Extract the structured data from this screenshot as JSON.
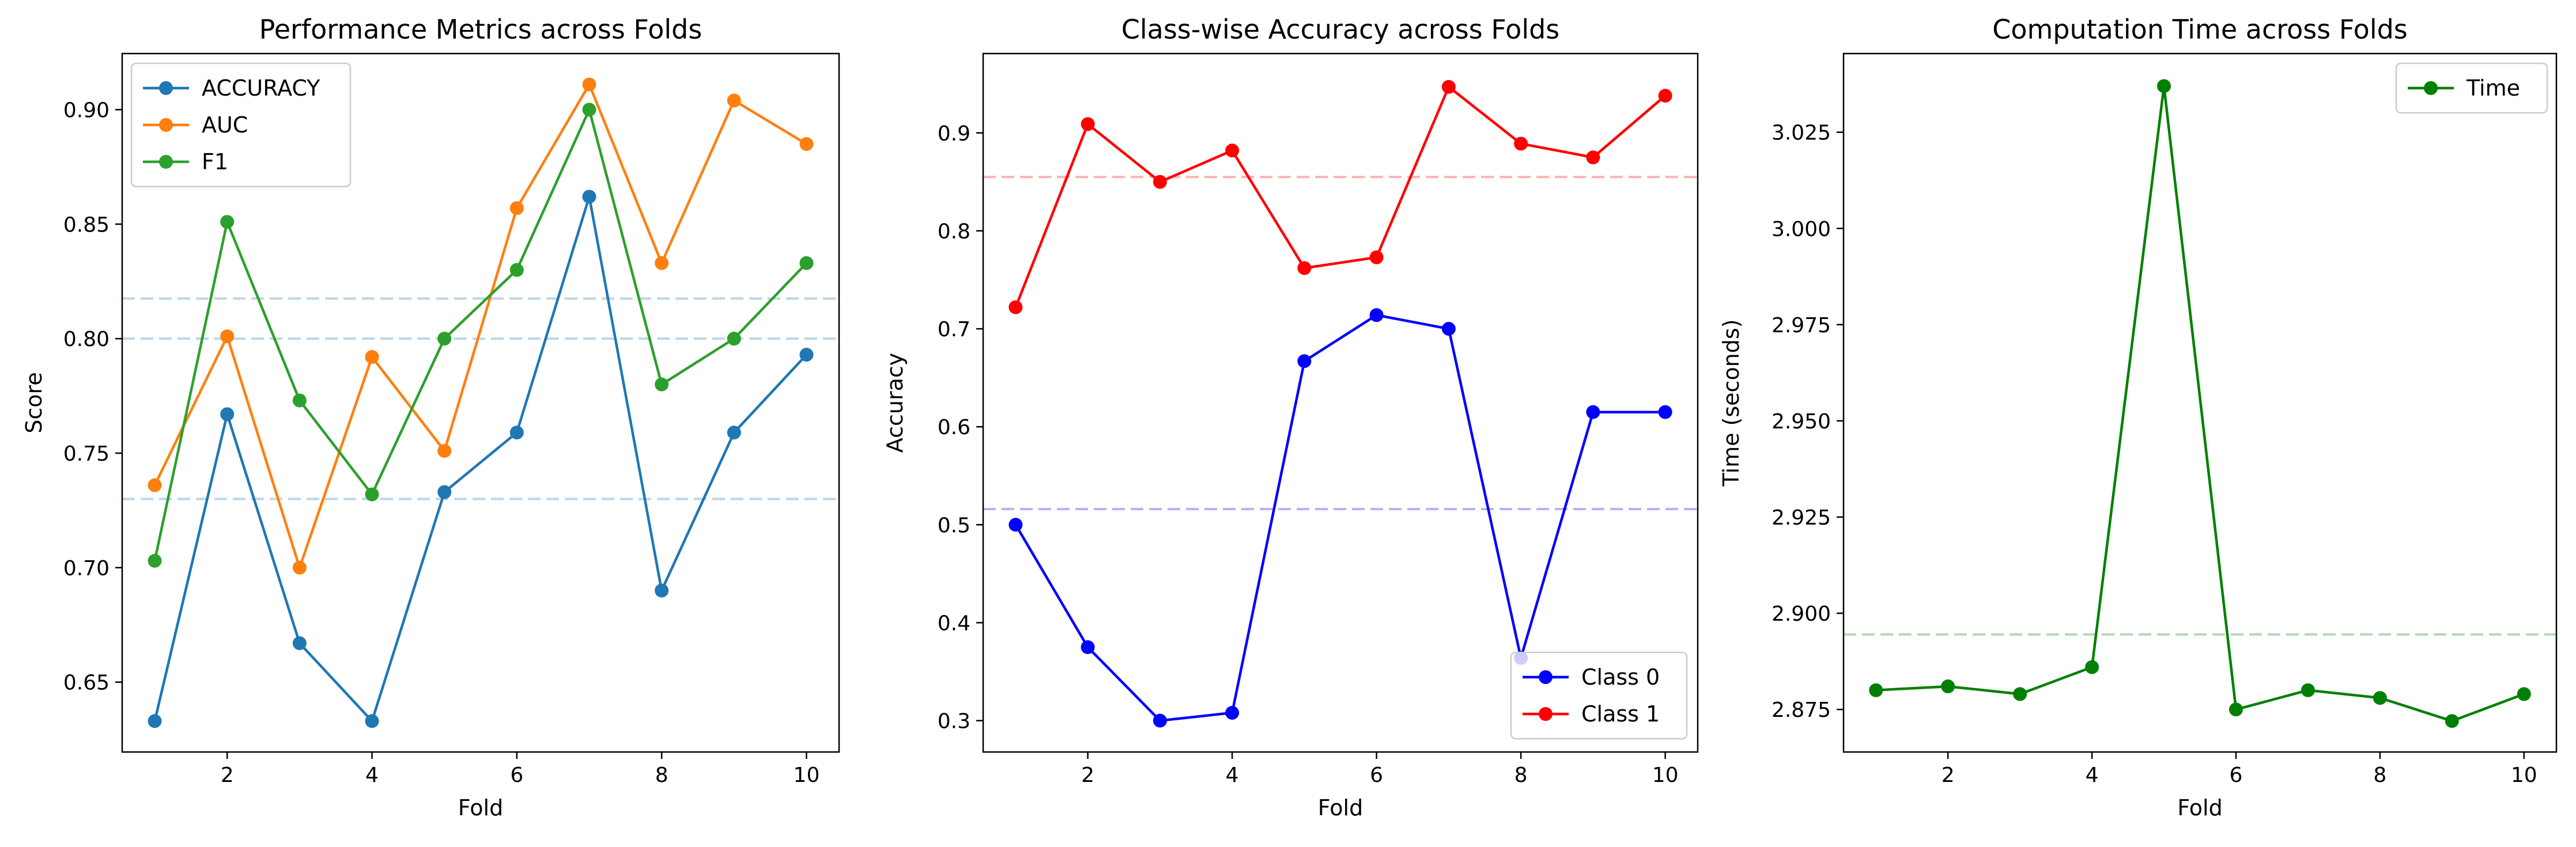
{
  "chart_data": [
    {
      "type": "line",
      "title": "Performance Metrics across Folds",
      "xlabel": "Fold",
      "ylabel": "Score",
      "xlim": [
        0.55,
        10.45
      ],
      "ylim": [
        0.6195,
        0.9245
      ],
      "xticks": [
        2,
        4,
        6,
        8,
        10
      ],
      "xtick_labels": [
        "2",
        "4",
        "6",
        "8",
        "10"
      ],
      "yticks": [
        0.65,
        0.7,
        0.75,
        0.8,
        0.85,
        0.9
      ],
      "ytick_labels": [
        "0.65",
        "0.70",
        "0.75",
        "0.80",
        "0.85",
        "0.90"
      ],
      "grid": false,
      "legend_position": "upper-left",
      "x": [
        1,
        2,
        3,
        4,
        5,
        6,
        7,
        8,
        9,
        10
      ],
      "series": [
        {
          "name": "ACCURACY",
          "color": "#1f77b4",
          "values": [
            0.633,
            0.767,
            0.667,
            0.633,
            0.733,
            0.759,
            0.862,
            0.69,
            0.759,
            0.793
          ]
        },
        {
          "name": "AUC",
          "color": "#ff7f0e",
          "values": [
            0.736,
            0.801,
            0.7,
            0.792,
            0.751,
            0.857,
            0.911,
            0.833,
            0.904,
            0.885
          ]
        },
        {
          "name": "F1",
          "color": "#2ca02c",
          "values": [
            0.703,
            0.851,
            0.773,
            0.732,
            0.8,
            0.83,
            0.9,
            0.78,
            0.8,
            0.833
          ]
        }
      ],
      "reference_lines": [
        {
          "value": 0.73,
          "color": "#1f77b4"
        },
        {
          "value": 0.8175,
          "color": "#1f77b4"
        },
        {
          "value": 0.8,
          "color": "#1f77b4"
        }
      ]
    },
    {
      "type": "line",
      "title": "Class-wise Accuracy across Folds",
      "xlabel": "Fold",
      "ylabel": "Accuracy",
      "xlim": [
        0.55,
        10.45
      ],
      "ylim": [
        0.268,
        0.981
      ],
      "xticks": [
        2,
        4,
        6,
        8,
        10
      ],
      "xtick_labels": [
        "2",
        "4",
        "6",
        "8",
        "10"
      ],
      "yticks": [
        0.3,
        0.4,
        0.5,
        0.6,
        0.7,
        0.8,
        0.9
      ],
      "ytick_labels": [
        "0.3",
        "0.4",
        "0.5",
        "0.6",
        "0.7",
        "0.8",
        "0.9"
      ],
      "grid": false,
      "legend_position": "lower-right",
      "x": [
        1,
        2,
        3,
        4,
        5,
        6,
        7,
        8,
        9,
        10
      ],
      "series": [
        {
          "name": "Class 0",
          "color": "#0000ff",
          "values": [
            0.5,
            0.375,
            0.3,
            0.308,
            0.667,
            0.714,
            0.7,
            0.364,
            0.615,
            0.615
          ]
        },
        {
          "name": "Class 1",
          "color": "#ff0000",
          "values": [
            0.722,
            0.909,
            0.85,
            0.882,
            0.762,
            0.773,
            0.947,
            0.889,
            0.875,
            0.938
          ]
        }
      ],
      "reference_lines": [
        {
          "value": 0.516,
          "color": "#0000ff"
        },
        {
          "value": 0.855,
          "color": "#ff0000"
        }
      ]
    },
    {
      "type": "line",
      "title": "Computation Time across Folds",
      "xlabel": "Fold",
      "ylabel": "Time (seconds)",
      "xlim": [
        0.55,
        10.45
      ],
      "ylim": [
        2.86395,
        3.04545
      ],
      "xticks": [
        2,
        4,
        6,
        8,
        10
      ],
      "xtick_labels": [
        "2",
        "4",
        "6",
        "8",
        "10"
      ],
      "yticks": [
        2.875,
        2.9,
        2.925,
        2.95,
        2.975,
        3.0,
        3.025
      ],
      "ytick_labels": [
        "2.875",
        "2.900",
        "2.925",
        "2.950",
        "2.975",
        "3.000",
        "3.025"
      ],
      "grid": false,
      "legend_position": "upper-right",
      "x": [
        1,
        2,
        3,
        4,
        5,
        6,
        7,
        8,
        9,
        10
      ],
      "series": [
        {
          "name": "Time",
          "color": "#008000",
          "values": [
            2.88,
            2.881,
            2.879,
            2.886,
            3.037,
            2.875,
            2.88,
            2.878,
            2.872,
            2.879
          ]
        }
      ],
      "reference_lines": [
        {
          "value": 2.8945,
          "color": "#008000"
        }
      ]
    }
  ]
}
